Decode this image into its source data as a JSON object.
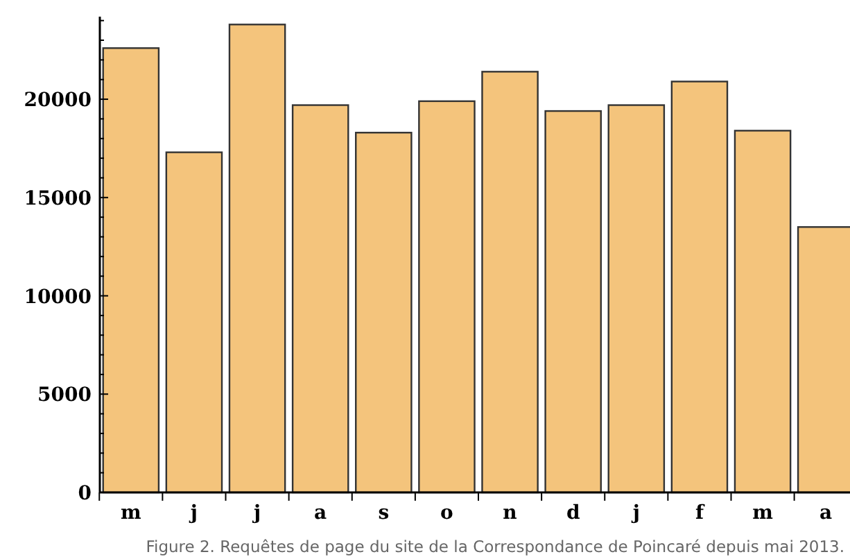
{
  "chart_data": {
    "type": "bar",
    "categories": [
      "m",
      "j",
      "j",
      "a",
      "s",
      "o",
      "n",
      "d",
      "j",
      "f",
      "m",
      "a"
    ],
    "values": [
      22600,
      17300,
      23800,
      19700,
      18300,
      19900,
      21400,
      19400,
      19700,
      20900,
      18400,
      13500
    ],
    "color": "#f4c47c",
    "ylim": [
      0,
      24200
    ],
    "yticks": [
      0,
      {
        "value": 1000,
        "label": null
      },
      {
        "value": 2000,
        "label": null
      },
      {
        "value": 3000,
        "label": null
      },
      {
        "value": 4000,
        "label": null
      },
      5000,
      {
        "value": 6000,
        "label": null
      },
      {
        "value": 7000,
        "label": null
      },
      {
        "value": 8000,
        "label": null
      },
      {
        "value": 9000,
        "label": null
      },
      10000,
      {
        "value": 11000,
        "label": null
      },
      {
        "value": 12000,
        "label": null
      },
      {
        "value": 13000,
        "label": null
      },
      {
        "value": 14000,
        "label": null
      },
      15000,
      {
        "value": 16000,
        "label": null
      },
      {
        "value": 17000,
        "label": null
      },
      {
        "value": 18000,
        "label": null
      },
      {
        "value": 19000,
        "label": null
      },
      20000,
      {
        "value": 21000,
        "label": null
      },
      {
        "value": 22000,
        "label": null
      },
      {
        "value": 23000,
        "label": null
      },
      {
        "value": 24000,
        "label": null
      }
    ],
    "annotations": [
      "Figure 2. Requêtes de page du site de la Correspondance de Poincaré depuis mai 2013."
    ]
  }
}
